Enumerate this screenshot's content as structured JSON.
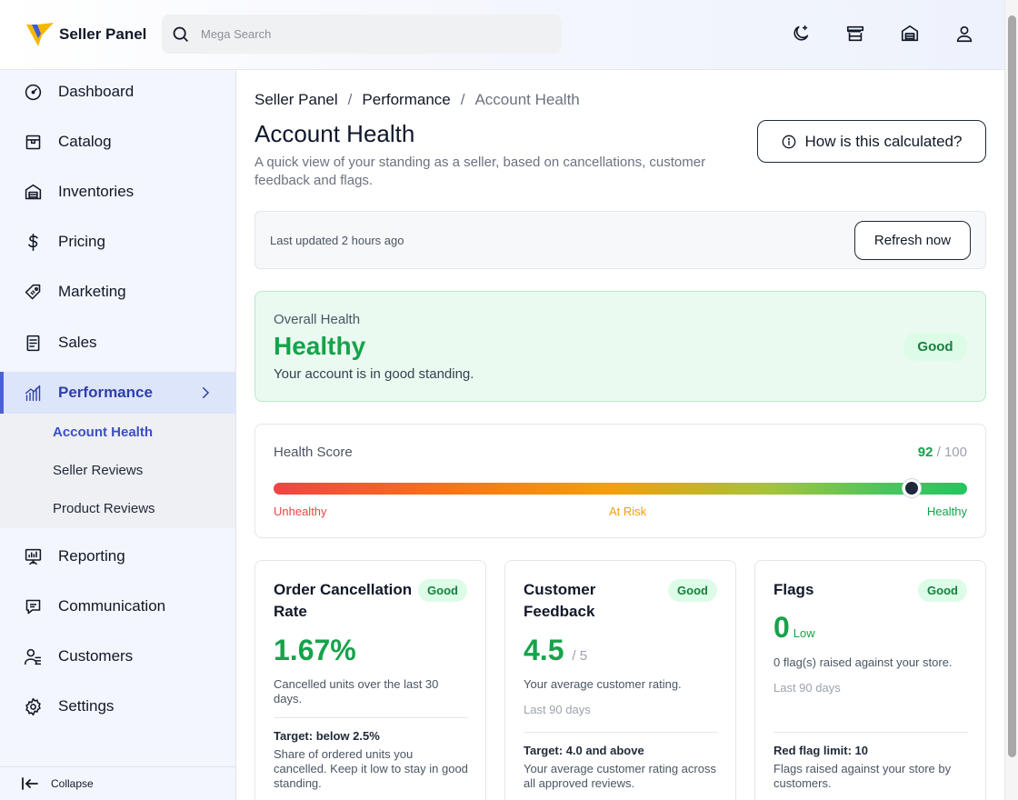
{
  "header": {
    "app_name": "Seller Panel",
    "search_placeholder": "Mega Search",
    "icons": [
      "moon-icon",
      "store-icon",
      "warehouse-icon",
      "user-icon"
    ]
  },
  "sidebar": {
    "items": [
      {
        "label": "Dashboard",
        "icon": "gauge-icon"
      },
      {
        "label": "Catalog",
        "icon": "box-icon"
      },
      {
        "label": "Inventories",
        "icon": "warehouse-icon"
      },
      {
        "label": "Pricing",
        "icon": "dollar-icon"
      },
      {
        "label": "Marketing",
        "icon": "tag-icon"
      },
      {
        "label": "Sales",
        "icon": "receipt-icon"
      },
      {
        "label": "Performance",
        "icon": "bar-chart-icon",
        "active": true
      },
      {
        "label": "Reporting",
        "icon": "presentation-icon"
      },
      {
        "label": "Communication",
        "icon": "message-icon"
      },
      {
        "label": "Customers",
        "icon": "users-icon"
      },
      {
        "label": "Settings",
        "icon": "gear-icon"
      }
    ],
    "sub_items": [
      {
        "label": "Account Health",
        "active": true
      },
      {
        "label": "Seller Reviews"
      },
      {
        "label": "Product Reviews"
      }
    ],
    "collapse_label": "Collapse"
  },
  "breadcrumb": [
    "Seller Panel",
    "Performance",
    "Account Health"
  ],
  "page": {
    "title": "Account Health",
    "description": "A quick view of your standing as a seller, based on cancellations, customer feedback and flags.",
    "calc_button": "How is this calculated?"
  },
  "update_bar": {
    "text": "Last updated 2 hours ago",
    "refresh_button": "Refresh now"
  },
  "overall": {
    "label": "Overall Health",
    "value": "Healthy",
    "description": "Your account is in good standing.",
    "badge": "Good"
  },
  "health_score": {
    "label": "Health Score",
    "score": "92",
    "max": "/ 100",
    "score_fraction": 0.92,
    "scale": [
      "Unhealthy",
      "At Risk",
      "Healthy"
    ]
  },
  "metrics": [
    {
      "title": "Order Cancellation Rate",
      "badge": "Good",
      "value": "1.67%",
      "description": "Cancelled units over the last 30 days.",
      "target_title": "Target: below 2.5%",
      "target_desc": "Share of ordered units you cancelled. Keep it low to stay in good standing."
    },
    {
      "title": "Customer Feedback",
      "badge": "Good",
      "value": "4.5",
      "value_suffix": "/ 5",
      "description": "Your average customer rating.",
      "period": "Last 90 days",
      "target_title": "Target: 4.0 and above",
      "target_desc": "Your average customer rating across all approved reviews."
    },
    {
      "title": "Flags",
      "badge": "Good",
      "value": "0",
      "value_suffix": "Low",
      "description": "0 flag(s) raised against your store.",
      "period": "Last 90 days",
      "target_title": "Red flag limit: 10",
      "target_desc": "Flags raised against your store by customers."
    }
  ],
  "colors": {
    "accent": "#4b62d6",
    "good": "#16a34a",
    "good_bg": "#eafaf0",
    "danger": "#ef4444",
    "warning": "#f59e0b"
  }
}
